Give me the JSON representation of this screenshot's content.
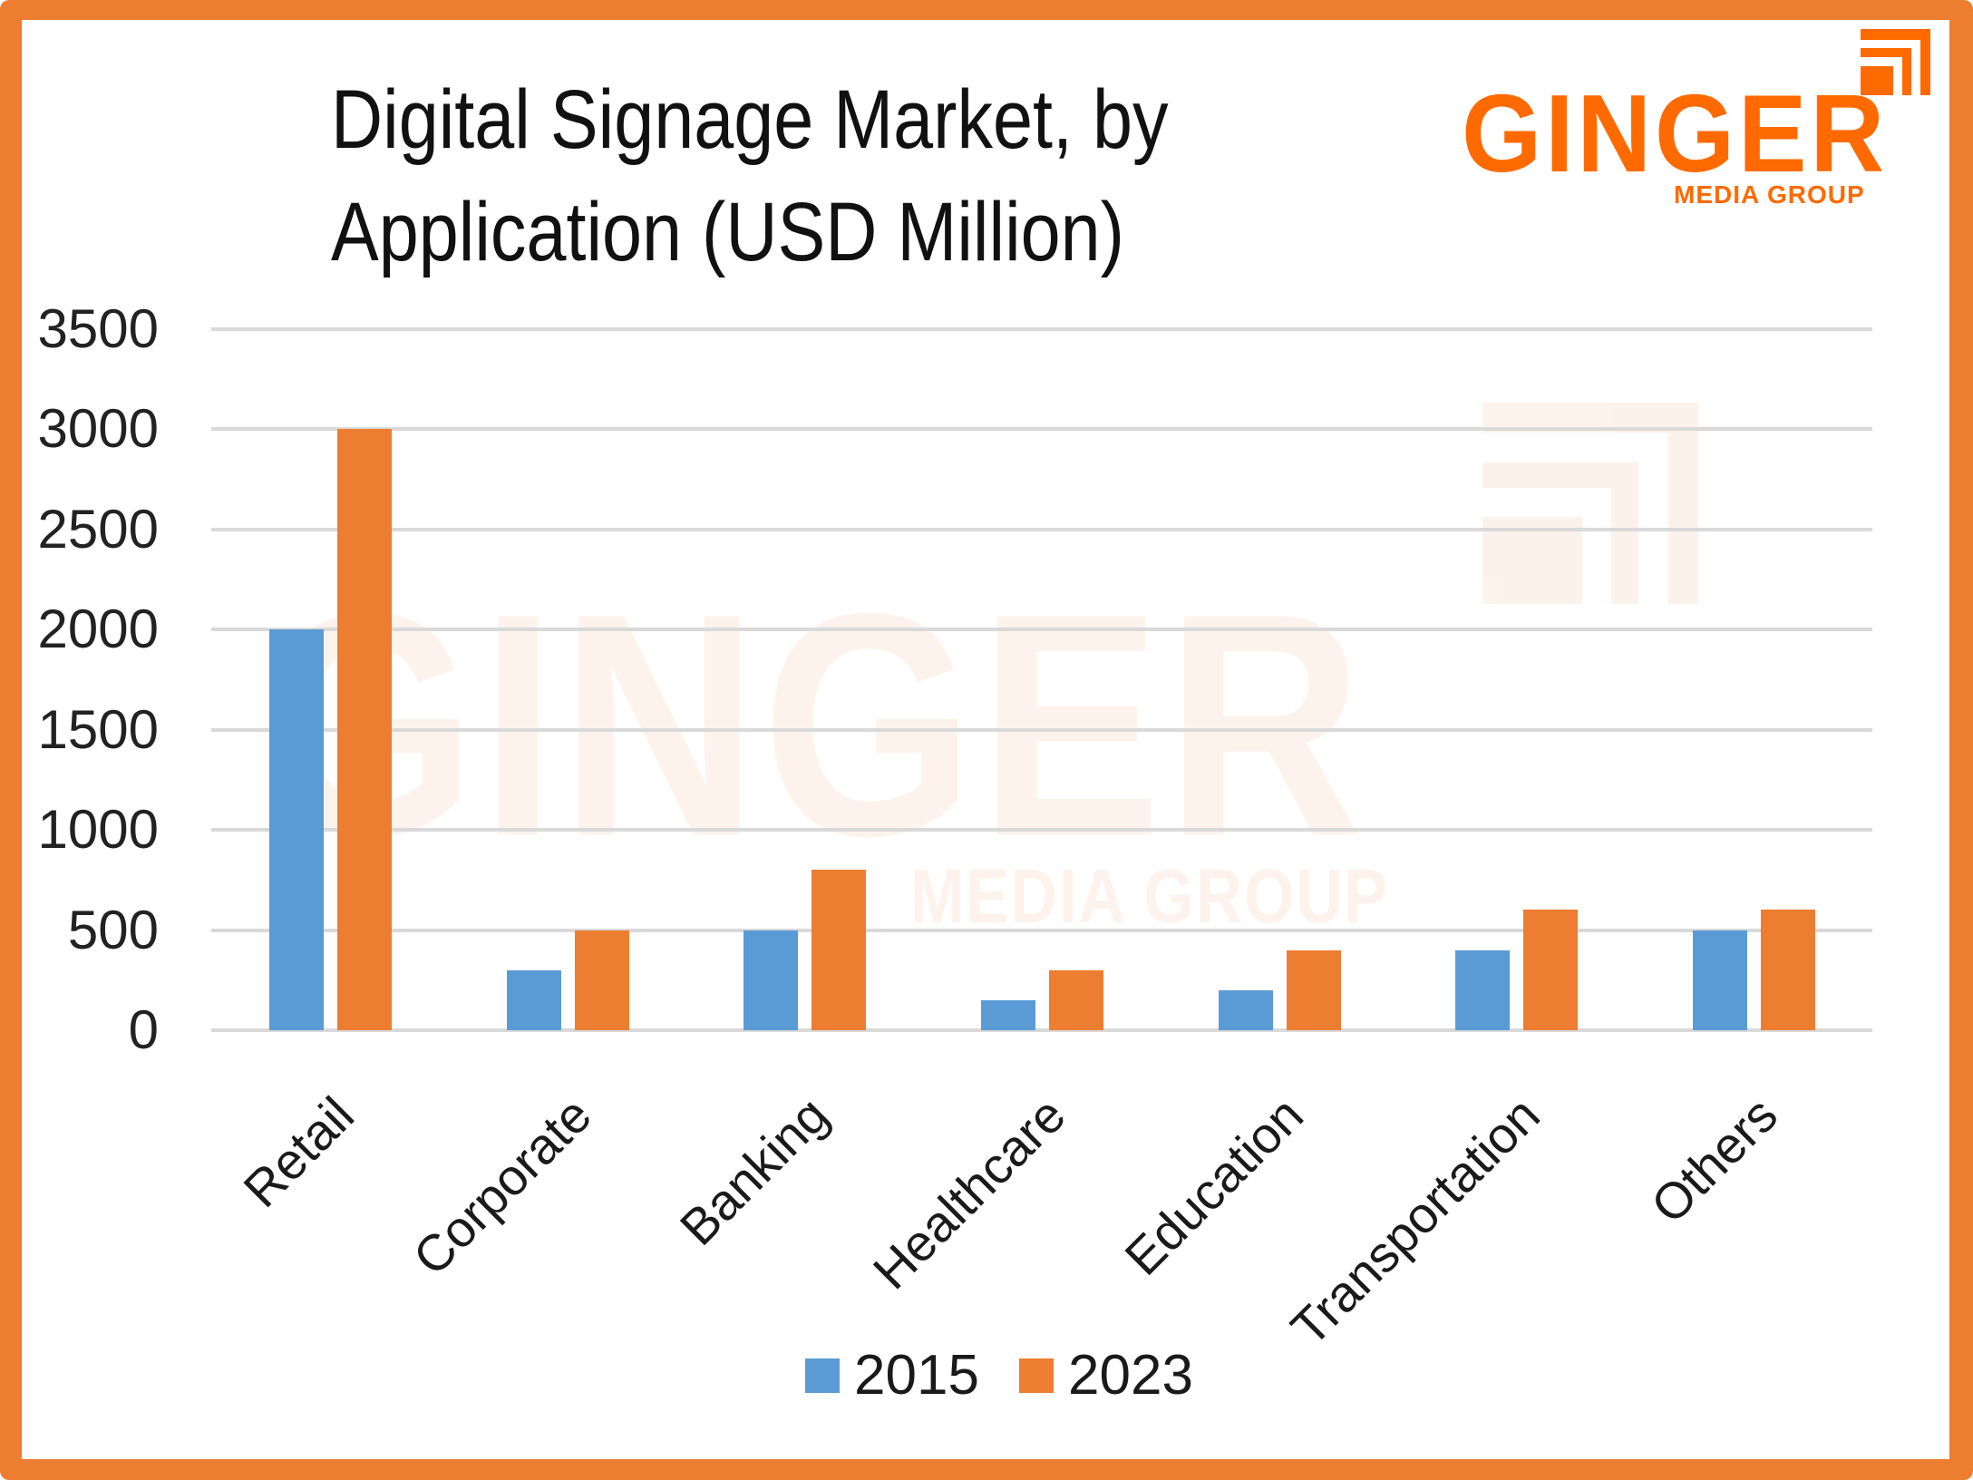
{
  "title": {
    "line1": "Digital Signage Market, by",
    "line2": "Application (USD Million)"
  },
  "logo": {
    "brand": "GINGER",
    "sub": "MEDIA GROUP",
    "color": "#FF6A00"
  },
  "watermark": {
    "brand": "GINGER",
    "sub": "MEDIA GROUP"
  },
  "colors": {
    "frame": "#ED7D31",
    "series_2015": "#5B9BD5",
    "series_2023": "#ED7D31",
    "grid": "#D9D9D9"
  },
  "y_axis": {
    "ticks": [
      "3500",
      "3000",
      "2500",
      "2000",
      "1500",
      "1000",
      "500",
      "0"
    ]
  },
  "legend": {
    "items": [
      {
        "label": "2015",
        "color": "#5B9BD5"
      },
      {
        "label": "2023",
        "color": "#ED7D31"
      }
    ]
  },
  "chart_data": {
    "type": "bar",
    "title": "Digital Signage Market, by Application (USD Million)",
    "xlabel": "",
    "ylabel": "",
    "categories": [
      "Retail",
      "Corporate",
      "Banking",
      "Healthcare",
      "Education",
      "Transportation",
      "Others"
    ],
    "series": [
      {
        "name": "2015",
        "color": "#5B9BD5",
        "values": [
          2000,
          300,
          500,
          150,
          200,
          400,
          500
        ]
      },
      {
        "name": "2023",
        "color": "#ED7D31",
        "values": [
          3000,
          500,
          800,
          300,
          400,
          600,
          600
        ]
      }
    ],
    "ylim": [
      0,
      3500
    ],
    "yticks": [
      0,
      500,
      1000,
      1500,
      2000,
      2500,
      3000,
      3500
    ],
    "grid": true,
    "legend_position": "bottom",
    "xtick_rotation": -45
  }
}
